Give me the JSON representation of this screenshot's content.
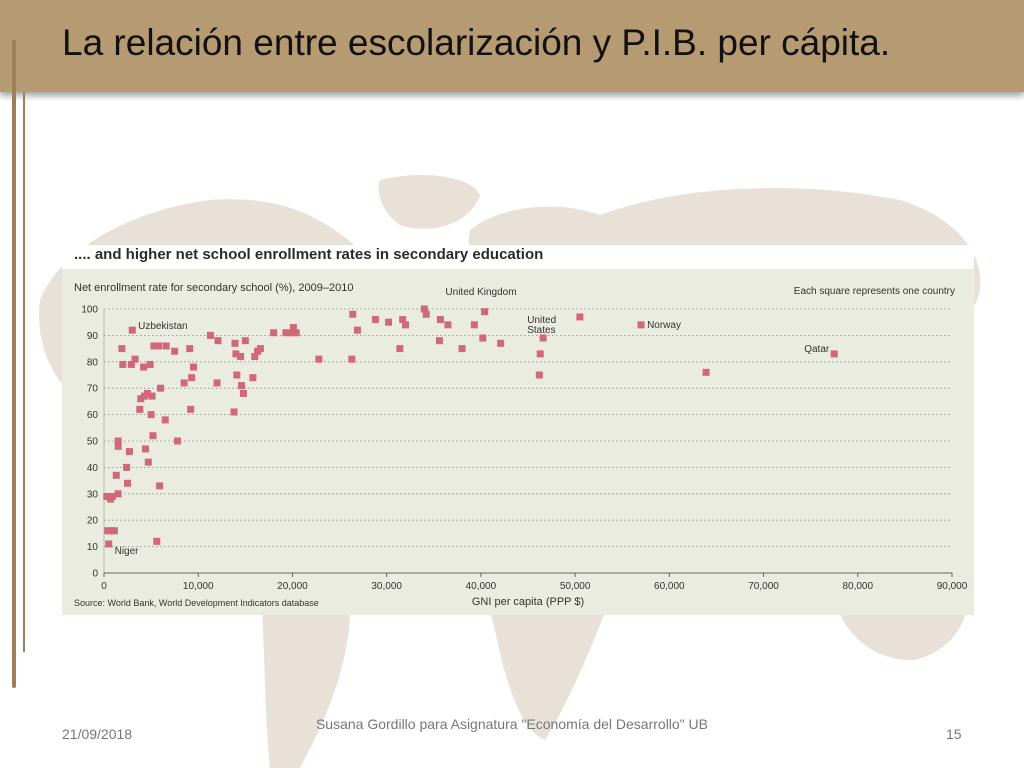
{
  "slide": {
    "title": "La relación entre escolarización y P.I.B. per cápita.",
    "footer_date": "21/09/2018",
    "footer_center": "Susana Gordillo para Asignatura \"Economía del Desarrollo\" UB",
    "page_number": "15"
  },
  "colors": {
    "title_bar": "#b59a72",
    "chart_background": "#e9ecdf",
    "marker": "#d0687a",
    "map": "#e8e1d8"
  },
  "chart_data": {
    "type": "scatter",
    "title": ".... and higher net school enrollment rates in secondary education",
    "subtitle": "Net enrollment rate for secondary school (%), 2009–2010",
    "note": "Each square represents one country",
    "xlabel": "GNI per capita (PPP $)",
    "source": "Source: World Bank, World Development Indicators database",
    "xlim": [
      0,
      90000
    ],
    "ylim": [
      0,
      100
    ],
    "x_ticks": [
      "0",
      "10,000",
      "20,000",
      "30,000",
      "40,000",
      "50,000",
      "60,000",
      "70,000",
      "80,000",
      "90,000"
    ],
    "y_ticks": [
      "0",
      "10",
      "20",
      "30",
      "40",
      "50",
      "60",
      "70",
      "80",
      "90",
      "100"
    ],
    "grid": "horizontal dotted",
    "annotations": [
      {
        "text": "Uzbekistan",
        "x": 3200,
        "y": 92
      },
      {
        "text": "United Kingdom",
        "x": 35600,
        "y": 97
      },
      {
        "text": "United States",
        "x": 46300,
        "y": 89
      },
      {
        "text": "Norway",
        "x": 57000,
        "y": 94
      },
      {
        "text": "Qatar",
        "x": 77500,
        "y": 83
      },
      {
        "text": "Niger",
        "x": 700,
        "y": 11
      }
    ],
    "points": [
      {
        "x": 300,
        "y": 29
      },
      {
        "x": 400,
        "y": 16
      },
      {
        "x": 500,
        "y": 11
      },
      {
        "x": 700,
        "y": 28
      },
      {
        "x": 800,
        "y": 16
      },
      {
        "x": 900,
        "y": 29
      },
      {
        "x": 1100,
        "y": 16
      },
      {
        "x": 1300,
        "y": 37
      },
      {
        "x": 1500,
        "y": 50
      },
      {
        "x": 1500,
        "y": 48
      },
      {
        "x": 1500,
        "y": 30
      },
      {
        "x": 1900,
        "y": 85
      },
      {
        "x": 2000,
        "y": 79
      },
      {
        "x": 2400,
        "y": 40
      },
      {
        "x": 2500,
        "y": 34
      },
      {
        "x": 2700,
        "y": 46
      },
      {
        "x": 2900,
        "y": 79
      },
      {
        "x": 3000,
        "y": 92
      },
      {
        "x": 3300,
        "y": 81
      },
      {
        "x": 3800,
        "y": 62
      },
      {
        "x": 3900,
        "y": 66
      },
      {
        "x": 4200,
        "y": 78
      },
      {
        "x": 4300,
        "y": 67
      },
      {
        "x": 4400,
        "y": 47
      },
      {
        "x": 4600,
        "y": 68
      },
      {
        "x": 4700,
        "y": 42
      },
      {
        "x": 4900,
        "y": 79
      },
      {
        "x": 5000,
        "y": 60
      },
      {
        "x": 5100,
        "y": 67
      },
      {
        "x": 5200,
        "y": 52
      },
      {
        "x": 5300,
        "y": 86
      },
      {
        "x": 5600,
        "y": 12
      },
      {
        "x": 5800,
        "y": 86
      },
      {
        "x": 5900,
        "y": 33
      },
      {
        "x": 6000,
        "y": 70
      },
      {
        "x": 6500,
        "y": 58
      },
      {
        "x": 6600,
        "y": 86
      },
      {
        "x": 7500,
        "y": 84
      },
      {
        "x": 7800,
        "y": 50
      },
      {
        "x": 8500,
        "y": 72
      },
      {
        "x": 9100,
        "y": 85
      },
      {
        "x": 9200,
        "y": 62
      },
      {
        "x": 9300,
        "y": 74
      },
      {
        "x": 9500,
        "y": 78
      },
      {
        "x": 11300,
        "y": 90
      },
      {
        "x": 12000,
        "y": 72
      },
      {
        "x": 12100,
        "y": 88
      },
      {
        "x": 13800,
        "y": 61
      },
      {
        "x": 13900,
        "y": 87
      },
      {
        "x": 14000,
        "y": 83
      },
      {
        "x": 14100,
        "y": 75
      },
      {
        "x": 14500,
        "y": 82
      },
      {
        "x": 14600,
        "y": 71
      },
      {
        "x": 14800,
        "y": 68
      },
      {
        "x": 15000,
        "y": 88
      },
      {
        "x": 15800,
        "y": 74
      },
      {
        "x": 16000,
        "y": 82
      },
      {
        "x": 16300,
        "y": 84
      },
      {
        "x": 16600,
        "y": 85
      },
      {
        "x": 18000,
        "y": 91
      },
      {
        "x": 19300,
        "y": 91
      },
      {
        "x": 19900,
        "y": 91
      },
      {
        "x": 20100,
        "y": 93
      },
      {
        "x": 20400,
        "y": 91
      },
      {
        "x": 22800,
        "y": 81
      },
      {
        "x": 26300,
        "y": 81
      },
      {
        "x": 26400,
        "y": 98
      },
      {
        "x": 26900,
        "y": 92
      },
      {
        "x": 28800,
        "y": 96
      },
      {
        "x": 30200,
        "y": 95
      },
      {
        "x": 31400,
        "y": 85
      },
      {
        "x": 31700,
        "y": 96
      },
      {
        "x": 32000,
        "y": 94
      },
      {
        "x": 34000,
        "y": 100
      },
      {
        "x": 34200,
        "y": 98
      },
      {
        "x": 35600,
        "y": 88
      },
      {
        "x": 35700,
        "y": 96
      },
      {
        "x": 36500,
        "y": 94
      },
      {
        "x": 38000,
        "y": 85
      },
      {
        "x": 39300,
        "y": 94
      },
      {
        "x": 40200,
        "y": 89
      },
      {
        "x": 40400,
        "y": 99
      },
      {
        "x": 42100,
        "y": 87
      },
      {
        "x": 46200,
        "y": 75
      },
      {
        "x": 46300,
        "y": 83
      },
      {
        "x": 46600,
        "y": 89
      },
      {
        "x": 50500,
        "y": 97
      },
      {
        "x": 57000,
        "y": 94
      },
      {
        "x": 63900,
        "y": 76
      },
      {
        "x": 77500,
        "y": 83
      }
    ]
  }
}
